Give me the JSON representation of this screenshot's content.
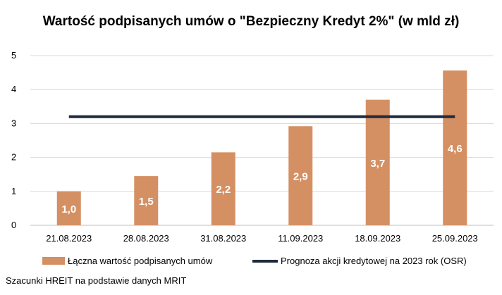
{
  "chart_data": {
    "type": "bar",
    "title": "Wartość podpisanych umów o \"Bezpieczny Kredyt 2%\" (w mld zł)",
    "categories": [
      "21.08.2023",
      "28.08.2023",
      "31.08.2023",
      "11.09.2023",
      "18.09.2023",
      "25.09.2023"
    ],
    "series": [
      {
        "name": "Łączna wartość podpisanych umów",
        "type": "bar",
        "color": "#D49063",
        "values": [
          1.0,
          1.45,
          2.15,
          2.92,
          3.7,
          4.56
        ],
        "labels": [
          "1,0",
          "1,5",
          "2,2",
          "2,9",
          "3,7",
          "4,6"
        ]
      },
      {
        "name": "Prognoza akcji kredytowej na 2023 rok (OSR)",
        "type": "line",
        "color": "#1F2A3C",
        "values": [
          3.2,
          3.2,
          3.2,
          3.2,
          3.2,
          3.2
        ]
      }
    ],
    "ylim": [
      0,
      5
    ],
    "yticks": [
      "0",
      "1",
      "2",
      "3",
      "4",
      "5"
    ],
    "grid": true,
    "legend": "bottom"
  },
  "footer": {
    "source": "Szacunki HREIT na podstawie danych MRIT"
  }
}
